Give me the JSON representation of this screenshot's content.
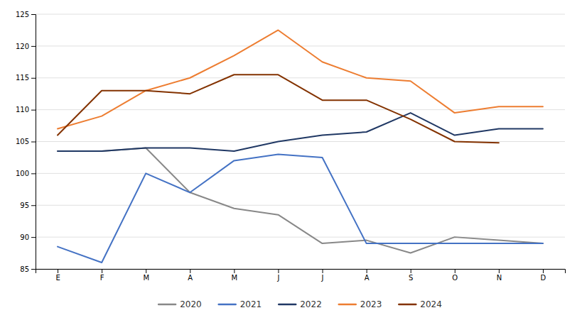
{
  "chart_data": {
    "type": "line",
    "categories": [
      "E",
      "F",
      "M",
      "A",
      "M",
      "J",
      "J",
      "A",
      "S",
      "O",
      "N",
      "D"
    ],
    "series": [
      {
        "name": "2020",
        "color": "#888888",
        "values": [
          103.5,
          103.5,
          104.0,
          97.0,
          94.5,
          93.5,
          89.0,
          89.5,
          87.5,
          90.0,
          89.5,
          89.0
        ]
      },
      {
        "name": "2021",
        "color": "#4472C4",
        "values": [
          88.5,
          86.0,
          100.0,
          97.0,
          102.0,
          103.0,
          102.5,
          89.0,
          89.0,
          89.0,
          89.0,
          89.0
        ]
      },
      {
        "name": "2022",
        "color": "#203864",
        "values": [
          103.5,
          103.5,
          104.0,
          104.0,
          103.5,
          105.0,
          106.0,
          106.5,
          109.5,
          106.0,
          107.0,
          107.0
        ]
      },
      {
        "name": "2023",
        "color": "#ED7D31",
        "values": [
          107.0,
          109.0,
          113.0,
          115.0,
          118.5,
          122.5,
          117.5,
          115.0,
          114.5,
          109.5,
          110.5,
          110.5
        ]
      },
      {
        "name": "2024",
        "color": "#833200",
        "values": [
          106.0,
          113.0,
          113.0,
          112.5,
          115.5,
          115.5,
          111.5,
          111.5,
          108.5,
          105.0,
          104.8,
          null
        ]
      }
    ],
    "ylim": [
      85,
      125
    ],
    "yticks": [
      85,
      90,
      95,
      100,
      105,
      110,
      115,
      120,
      125
    ],
    "grid": true,
    "legend": "bottom"
  }
}
